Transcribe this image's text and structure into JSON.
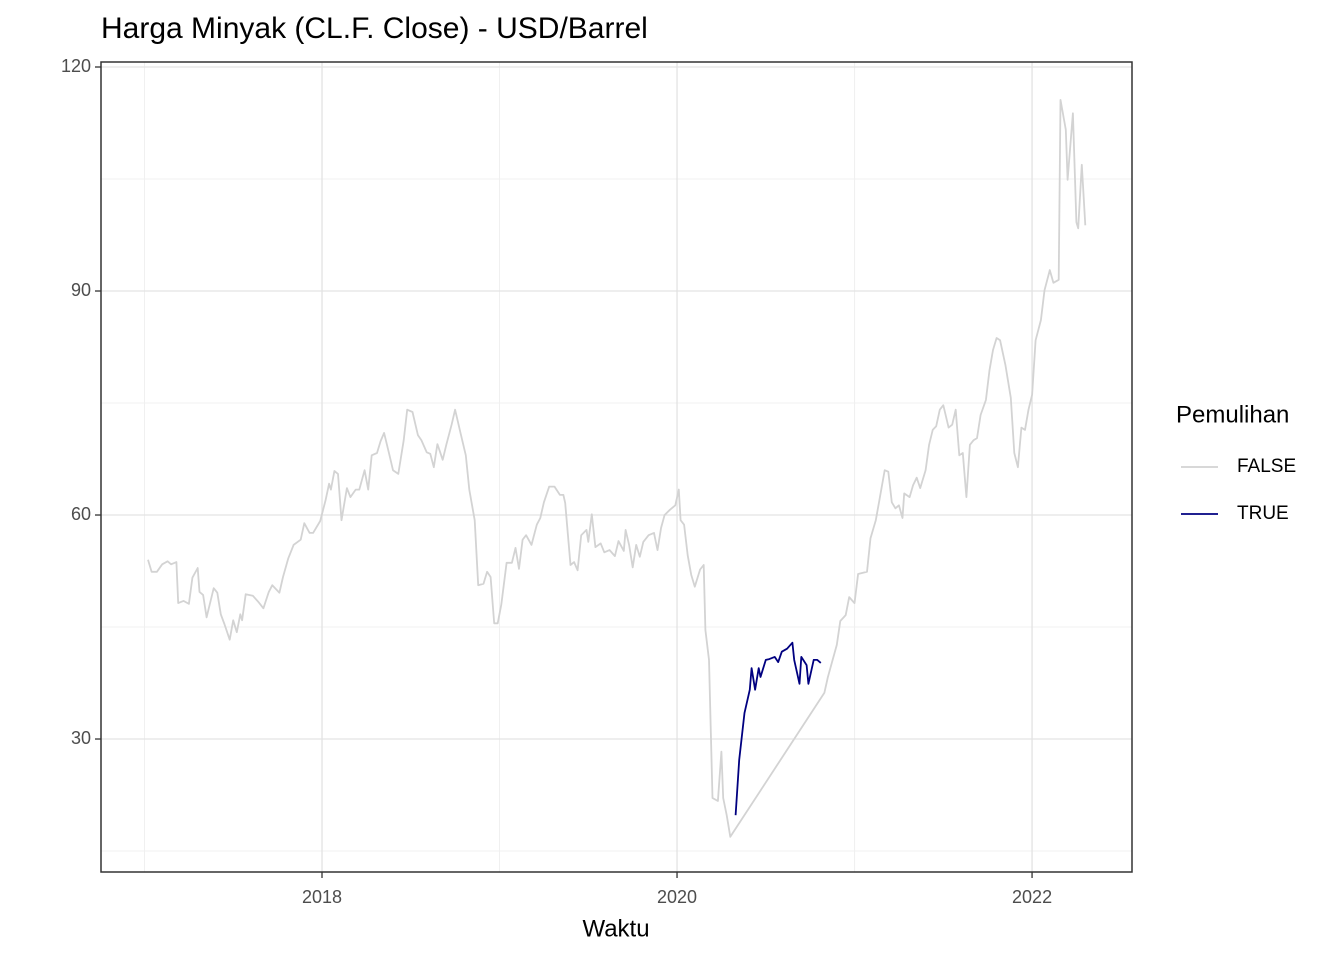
{
  "chart_data": {
    "type": "line",
    "title": "Harga Minyak (CL.F. Close) - USD/Barrel",
    "x_label": "Waktu",
    "legend_title": "Pemulihan",
    "legend": "right",
    "grid": true,
    "xlim": [
      2016.755,
      2022.563
    ],
    "xticks": [
      2018,
      2020,
      2022
    ],
    "xminor": [
      2017,
      2019,
      2021
    ],
    "ylim": [
      12.19,
      120.67
    ],
    "yticks": [
      30,
      60,
      90,
      120
    ],
    "yminor": [
      15,
      45,
      75,
      105
    ],
    "series": [
      {
        "name": "FALSE",
        "color": "#d3d3d3",
        "x": [
          2017.02,
          2017.04,
          2017.07,
          2017.1,
          2017.13,
          2017.15,
          2017.18,
          2017.19,
          2017.22,
          2017.25,
          2017.27,
          2017.3,
          2017.31,
          2017.33,
          2017.35,
          2017.39,
          2017.41,
          2017.43,
          2017.45,
          2017.48,
          2017.5,
          2017.52,
          2017.54,
          2017.55,
          2017.57,
          2017.61,
          2017.64,
          2017.67,
          2017.7,
          2017.72,
          2017.76,
          2017.78,
          2017.81,
          2017.84,
          2017.88,
          2017.9,
          2017.93,
          2017.95,
          2017.99,
          2018.02,
          2018.04,
          2018.05,
          2018.07,
          2018.09,
          2018.11,
          2018.14,
          2018.16,
          2018.19,
          2018.21,
          2018.24,
          2018.26,
          2018.28,
          2018.31,
          2018.33,
          2018.35,
          2018.38,
          2018.4,
          2018.43,
          2018.46,
          2018.48,
          2018.51,
          2018.54,
          2018.56,
          2018.59,
          2018.61,
          2018.63,
          2018.65,
          2018.68,
          2018.7,
          2018.73,
          2018.75,
          2018.78,
          2018.81,
          2018.83,
          2018.86,
          2018.88,
          2018.91,
          2018.93,
          2018.95,
          2018.97,
          2018.99,
          2019.01,
          2019.04,
          2019.07,
          2019.09,
          2019.11,
          2019.13,
          2019.15,
          2019.18,
          2019.21,
          2019.23,
          2019.25,
          2019.28,
          2019.31,
          2019.34,
          2019.36,
          2019.37,
          2019.4,
          2019.42,
          2019.44,
          2019.46,
          2019.49,
          2019.5,
          2019.52,
          2019.54,
          2019.57,
          2019.59,
          2019.62,
          2019.65,
          2019.67,
          2019.7,
          2019.71,
          2019.73,
          2019.75,
          2019.77,
          2019.79,
          2019.81,
          2019.84,
          2019.87,
          2019.89,
          2019.91,
          2019.93,
          2019.96,
          2019.99,
          2020.01,
          2020.02,
          2020.04,
          2020.06,
          2020.08,
          2020.1,
          2020.13,
          2020.15,
          2020.16,
          2020.18,
          2020.2,
          2020.23,
          2020.25,
          2020.26,
          2020.28,
          2020.3,
          2020.83,
          2020.85,
          2020.9,
          2020.92,
          2020.95,
          2020.97,
          2021.0,
          2021.02,
          2021.07,
          2021.09,
          2021.12,
          2021.14,
          2021.17,
          2021.19,
          2021.21,
          2021.23,
          2021.25,
          2021.27,
          2021.28,
          2021.31,
          2021.33,
          2021.35,
          2021.37,
          2021.4,
          2021.42,
          2021.44,
          2021.46,
          2021.48,
          2021.5,
          2021.53,
          2021.55,
          2021.57,
          2021.59,
          2021.61,
          2021.63,
          2021.65,
          2021.67,
          2021.69,
          2021.71,
          2021.74,
          2021.76,
          2021.78,
          2021.8,
          2021.82,
          2021.85,
          2021.88,
          2021.9,
          2021.92,
          2021.94,
          2021.96,
          2021.98,
          2022.0,
          2022.02,
          2022.05,
          2022.07,
          2022.1,
          2022.12,
          2022.15,
          2022.16,
          2022.19,
          2022.2,
          2022.23,
          2022.25,
          2022.26,
          2022.28,
          2022.3
        ],
        "values": [
          54.0,
          52.4,
          52.4,
          53.4,
          53.8,
          53.4,
          53.7,
          48.2,
          48.5,
          48.1,
          51.6,
          52.9,
          49.7,
          49.3,
          46.3,
          50.2,
          49.6,
          46.7,
          45.4,
          43.3,
          45.9,
          44.3,
          46.7,
          45.9,
          49.4,
          49.2,
          48.4,
          47.5,
          49.7,
          50.6,
          49.6,
          51.7,
          54.2,
          56.0,
          56.7,
          58.9,
          57.6,
          57.6,
          59.2,
          62.0,
          64.2,
          63.4,
          65.9,
          65.5,
          59.3,
          63.6,
          62.4,
          63.4,
          63.4,
          66.0,
          63.4,
          68.0,
          68.3,
          69.9,
          71.0,
          68.0,
          66.0,
          65.5,
          70.0,
          74.1,
          73.8,
          70.7,
          70.0,
          68.4,
          68.2,
          66.4,
          69.5,
          67.4,
          69.4,
          72.1,
          74.1,
          71.0,
          68.0,
          63.4,
          59.3,
          50.6,
          50.8,
          52.4,
          51.7,
          45.5,
          45.5,
          48.0,
          53.6,
          53.6,
          55.6,
          52.8,
          56.7,
          57.3,
          56.0,
          58.7,
          59.6,
          61.7,
          63.8,
          63.8,
          62.7,
          62.7,
          61.6,
          53.3,
          53.7,
          52.6,
          57.3,
          58.0,
          56.4,
          60.1,
          55.7,
          56.2,
          55.0,
          55.3,
          54.5,
          56.5,
          55.2,
          58.0,
          56.0,
          53.0,
          56.0,
          54.4,
          56.4,
          57.3,
          57.6,
          55.3,
          58.3,
          60.0,
          60.7,
          61.3,
          63.4,
          59.3,
          58.7,
          54.6,
          52.0,
          50.4,
          52.7,
          53.3,
          44.6,
          40.6,
          22.1,
          21.7,
          28.3,
          22.1,
          19.8,
          16.9,
          36.2,
          38.3,
          42.6,
          45.8,
          46.6,
          49.0,
          48.2,
          52.1,
          52.4,
          56.9,
          59.3,
          62.0,
          66.0,
          65.8,
          61.7,
          60.9,
          61.3,
          59.6,
          62.9,
          62.4,
          64.0,
          65.0,
          63.6,
          66.0,
          69.4,
          71.4,
          71.9,
          74.1,
          74.7,
          71.7,
          72.1,
          74.1,
          68.0,
          68.3,
          62.4,
          69.4,
          70.0,
          70.3,
          73.4,
          75.4,
          79.4,
          82.1,
          83.7,
          83.4,
          80.1,
          75.7,
          68.3,
          66.4,
          71.7,
          71.4,
          74.1,
          76.1,
          83.4,
          86.1,
          90.1,
          92.8,
          91.1,
          91.5,
          115.6,
          111.6,
          104.9,
          113.8,
          99.2,
          98.4,
          106.9,
          98.8
        ]
      },
      {
        "name": "TRUE",
        "color": "#000080",
        "x": [
          2020.33,
          2020.35,
          2020.38,
          2020.41,
          2020.42,
          2020.44,
          2020.46,
          2020.47,
          2020.5,
          2020.52,
          2020.55,
          2020.57,
          2020.59,
          2020.62,
          2020.65,
          2020.66,
          2020.69,
          2020.7,
          2020.73,
          2020.74,
          2020.77,
          2020.79,
          2020.81
        ],
        "values": [
          19.8,
          27.2,
          33.5,
          36.6,
          39.5,
          36.6,
          39.5,
          38.3,
          40.6,
          40.7,
          41.0,
          40.3,
          41.7,
          42.1,
          42.9,
          40.6,
          37.4,
          41.0,
          39.9,
          37.4,
          40.6,
          40.6,
          40.2
        ]
      }
    ]
  }
}
